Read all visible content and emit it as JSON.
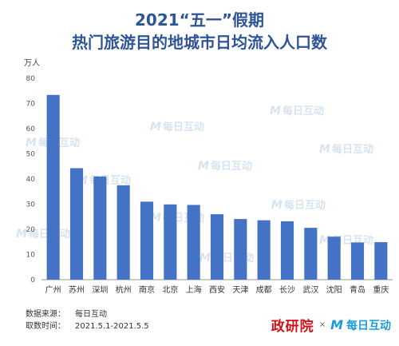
{
  "title_line1": "2021“五一”假期",
  "title_line2": "热门旅游目的地城市日均流入人口数",
  "unit": "万人",
  "watermark": "每日互动",
  "watermark_mark": "M",
  "source": {
    "data_label": "数据来源：",
    "data_value": "每日互动",
    "time_label": "取数时间：",
    "time_value": "2021.5.1-2021.5.5"
  },
  "footer": {
    "brand1": "政研院",
    "times": "×",
    "brand2_mark": "M",
    "brand2": "每日互动"
  },
  "colors": {
    "bar": "#4472c4",
    "title": "#2f5597",
    "brand_red": "#d0121b",
    "brand_blue": "#1d9bd8"
  },
  "chart_data": {
    "type": "bar",
    "categories": [
      "广州",
      "苏州",
      "深圳",
      "杭州",
      "南京",
      "北京",
      "上海",
      "西安",
      "天津",
      "成都",
      "长沙",
      "武汉",
      "沈阳",
      "青岛",
      "重庆"
    ],
    "values": [
      73.4,
      44.3,
      41.0,
      37.5,
      31.0,
      29.9,
      29.7,
      26.0,
      24.1,
      23.6,
      23.2,
      20.6,
      17.1,
      14.8,
      14.9
    ],
    "ylim": [
      0,
      80
    ],
    "yticks": [
      0,
      10,
      20,
      30,
      40,
      50,
      60,
      70,
      80
    ],
    "ylabel": "万人",
    "grid": false
  }
}
